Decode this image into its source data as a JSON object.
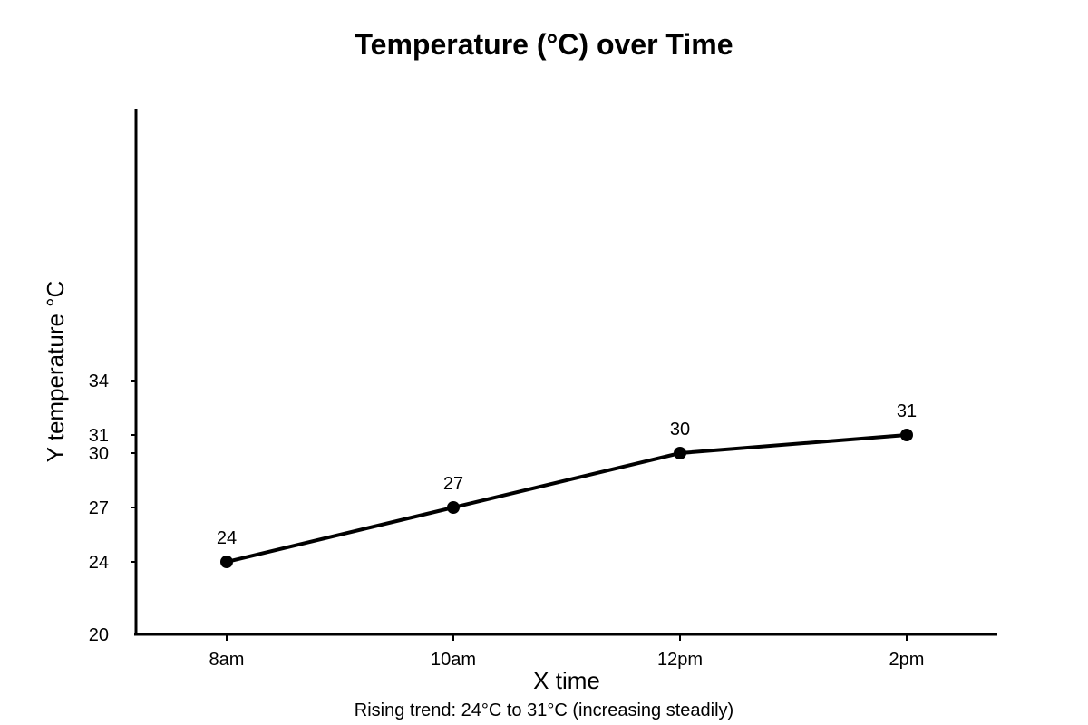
{
  "chart_data": {
    "type": "line",
    "title": "Temperature (°C) over Time",
    "xlabel": "X time",
    "ylabel": "Y temperature °C",
    "categories": [
      "8am",
      "10am",
      "12pm",
      "2pm"
    ],
    "series": [
      {
        "values": [
          24,
          27,
          30,
          31
        ]
      }
    ],
    "data_labels": [
      "24",
      "27",
      "30",
      "31"
    ],
    "y_ticks": [
      20,
      24,
      27,
      30,
      31,
      34
    ],
    "ylim": [
      20,
      34.5
    ],
    "grid": false,
    "legend": "none",
    "caption": "Rising trend: 24°C to 31°C (increasing steadily)",
    "colors": {
      "line": "#000000",
      "axis": "#000000",
      "text": "#000000"
    }
  }
}
